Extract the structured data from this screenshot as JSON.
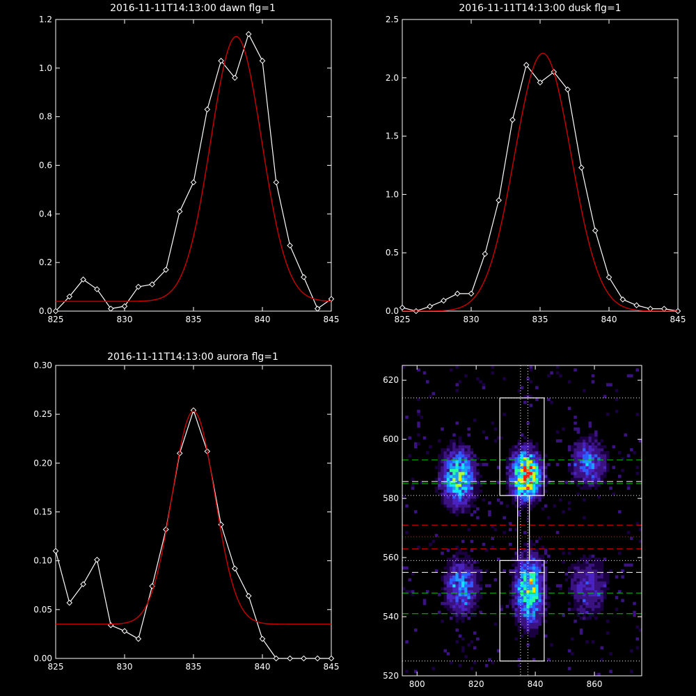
{
  "chart_data": [
    {
      "type": "line",
      "title": "2016-11-11T14:13:00 dawn flg=1",
      "xlim": [
        825,
        845
      ],
      "ylim": [
        0,
        1.2
      ],
      "x_ticks": [
        825,
        830,
        835,
        840,
        845
      ],
      "x_tick_labels": [
        "825",
        "830",
        "835",
        "840",
        "845"
      ],
      "y_ticks": [
        0,
        0.2,
        0.4,
        0.6,
        0.8,
        1.0,
        1.2
      ],
      "y_tick_labels": [
        "0.0",
        "0.2",
        "0.4",
        "0.6",
        "0.8",
        "1.0",
        "1.2"
      ],
      "grid": false,
      "series": [
        {
          "color": "#ffffff",
          "marker": "diamond",
          "x": [
            825,
            826,
            827,
            828,
            829,
            830,
            831,
            832,
            833,
            834,
            835,
            836,
            837,
            838,
            839,
            840,
            841,
            842,
            843,
            844,
            845
          ],
          "y": [
            0.0,
            0.06,
            0.13,
            0.09,
            0.01,
            0.02,
            0.1,
            0.11,
            0.17,
            0.41,
            0.53,
            0.83,
            1.03,
            0.96,
            1.14,
            1.03,
            0.53,
            0.27,
            0.14,
            0.01,
            0.05
          ]
        },
        {
          "color": "#cc0000",
          "fit": "gaussian",
          "amplitude": 1.09,
          "center": 838.1,
          "sigma": 1.85,
          "offset": 0.04
        }
      ]
    },
    {
      "type": "line",
      "title": "2016-11-11T14:13:00 dusk flg=1",
      "xlim": [
        825,
        845
      ],
      "ylim": [
        0,
        2.5
      ],
      "x_ticks": [
        825,
        830,
        835,
        840,
        845
      ],
      "x_tick_labels": [
        "825",
        "830",
        "835",
        "840",
        "845"
      ],
      "y_ticks": [
        0,
        0.5,
        1.0,
        1.5,
        2.0,
        2.5
      ],
      "y_tick_labels": [
        "0.0",
        "0.5",
        "1.0",
        "1.5",
        "2.0",
        "2.5"
      ],
      "grid": false,
      "series": [
        {
          "color": "#ffffff",
          "marker": "diamond",
          "x": [
            825,
            826,
            827,
            828,
            829,
            830,
            831,
            832,
            833,
            834,
            835,
            836,
            837,
            838,
            839,
            840,
            841,
            842,
            843,
            844,
            845
          ],
          "y": [
            0.03,
            0.0,
            0.04,
            0.09,
            0.15,
            0.15,
            0.49,
            0.95,
            1.64,
            2.11,
            1.96,
            2.05,
            1.9,
            1.23,
            0.69,
            0.29,
            0.1,
            0.05,
            0.02,
            0.02,
            0.0
          ]
        },
        {
          "color": "#cc0000",
          "fit": "gaussian",
          "amplitude": 2.21,
          "center": 835.2,
          "sigma": 2.05,
          "offset": 0.0
        }
      ]
    },
    {
      "type": "line",
      "title": "2016-11-11T14:13:00 aurora flg=1",
      "xlim": [
        825,
        845
      ],
      "ylim": [
        0,
        0.3
      ],
      "x_ticks": [
        825,
        830,
        835,
        840,
        845
      ],
      "x_tick_labels": [
        "825",
        "830",
        "835",
        "840",
        "845"
      ],
      "y_ticks": [
        0,
        0.05,
        0.1,
        0.15,
        0.2,
        0.25,
        0.3
      ],
      "y_tick_labels": [
        "0.00",
        "0.05",
        "0.10",
        "0.15",
        "0.20",
        "0.25",
        "0.30"
      ],
      "grid": false,
      "series": [
        {
          "color": "#ffffff",
          "marker": "diamond",
          "x": [
            825,
            826,
            827,
            828,
            829,
            830,
            831,
            832,
            833,
            834,
            835,
            836,
            837,
            838,
            839,
            840,
            841,
            842,
            843,
            844,
            845
          ],
          "y": [
            0.11,
            0.057,
            0.076,
            0.101,
            0.034,
            0.028,
            0.02,
            0.074,
            0.132,
            0.21,
            0.254,
            0.212,
            0.137,
            0.092,
            0.064,
            0.02,
            0.0,
            0.0,
            0.0,
            0.0,
            0.0
          ]
        },
        {
          "color": "#cc0000",
          "fit": "gaussian",
          "amplitude": 0.218,
          "center": 835.0,
          "sigma": 1.55,
          "offset": 0.035
        }
      ]
    },
    {
      "type": "heatmap",
      "xlim": [
        795,
        876
      ],
      "ylim": [
        520,
        625
      ],
      "x_ticks": [
        800,
        820,
        840,
        860
      ],
      "x_tick_labels": [
        "800",
        "820",
        "840",
        "860"
      ],
      "y_ticks": [
        520,
        540,
        560,
        580,
        600,
        620
      ],
      "y_tick_labels": [
        "520",
        "540",
        "560",
        "580",
        "600",
        "620"
      ],
      "colormap": [
        "#1a0040",
        "#3a1380",
        "#4a22c0",
        "#2f5cff",
        "#1e9cff",
        "#14e0ff",
        "#29ff9c",
        "#b9ff2b",
        "#ffe600",
        "#ff7a00",
        "#ff1a00"
      ],
      "blobs": [
        {
          "x": 814,
          "y": 587,
          "sx": 3.5,
          "sy": 6,
          "peak": 0.55
        },
        {
          "x": 815,
          "y": 550,
          "sx": 3.5,
          "sy": 6,
          "peak": 0.35
        },
        {
          "x": 837,
          "y": 588,
          "sx": 3,
          "sy": 5,
          "peak": 0.95
        },
        {
          "x": 838,
          "y": 549,
          "sx": 3,
          "sy": 7,
          "peak": 0.62
        },
        {
          "x": 858,
          "y": 592,
          "sx": 3.5,
          "sy": 5,
          "peak": 0.32
        },
        {
          "x": 858,
          "y": 550,
          "sx": 4,
          "sy": 6,
          "peak": 0.22
        }
      ],
      "boxes": [
        {
          "x0": 828,
          "x1": 843,
          "y0": 581,
          "y1": 614,
          "color": "#ffffff"
        },
        {
          "x0": 828,
          "x1": 843,
          "y0": 525,
          "y1": 559,
          "color": "#ffffff"
        },
        {
          "x0": 834,
          "x1": 838,
          "y0": 559,
          "y1": 581,
          "color": "#ffffff"
        }
      ],
      "hlines": [
        {
          "y": 614,
          "color": "#ffffff",
          "style": "dotted"
        },
        {
          "y": 593,
          "color": "#00cc00",
          "style": "dashed"
        },
        {
          "y": 585,
          "color": "#00cc00",
          "style": "dashed"
        },
        {
          "y": 585.7,
          "color": "#ffffff",
          "style": "dashed"
        },
        {
          "y": 581,
          "color": "#ffffff",
          "style": "dotted"
        },
        {
          "y": 571,
          "color": "#cc0000",
          "style": "dashed"
        },
        {
          "y": 567,
          "color": "#cc0000",
          "style": "dotted"
        },
        {
          "y": 563,
          "color": "#cc0000",
          "style": "dashed"
        },
        {
          "y": 559,
          "color": "#ffffff",
          "style": "dotted"
        },
        {
          "y": 555,
          "color": "#ffffff",
          "style": "dashed"
        },
        {
          "y": 548,
          "color": "#00cc00",
          "style": "dashed"
        },
        {
          "y": 541,
          "color": "#00cc00",
          "style": "dashed"
        },
        {
          "y": 525,
          "color": "#ffffff",
          "style": "dotted"
        }
      ],
      "vlines": [
        {
          "x": 835,
          "color": "#ffffff",
          "style": "dotted"
        },
        {
          "x": 837.5,
          "color": "#ffffff",
          "style": "dotted"
        }
      ]
    }
  ]
}
